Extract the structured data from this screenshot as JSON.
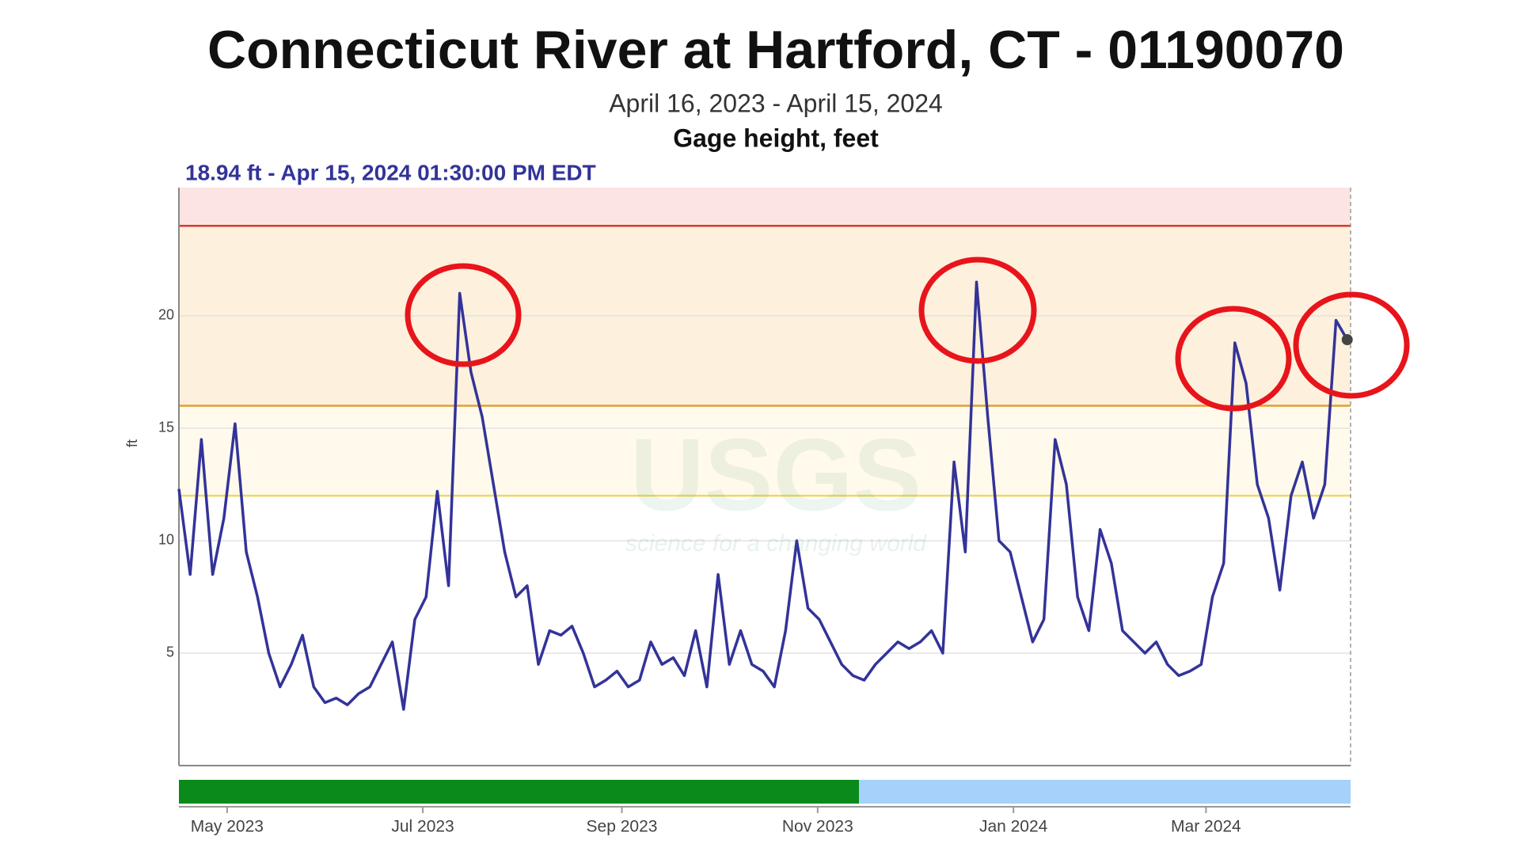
{
  "chart_data": {
    "type": "line",
    "title": "Connecticut River at Hartford, CT - 01190070",
    "subtitle": "April 16, 2023 - April 15, 2024",
    "parameter": "Gage height, feet",
    "annotation": "18.94 ft - Apr 15, 2024 01:30:00 PM EDT",
    "y_label": "ft",
    "watermark": "USGS",
    "watermark_tagline": "science for a changing world",
    "color": "#333399",
    "values": [
      12.3,
      8.5,
      14.5,
      8.5,
      11,
      15.2,
      9.5,
      7.5,
      5,
      3.5,
      4.5,
      5.8,
      3.5,
      2.8,
      3.0,
      2.7,
      3.2,
      3.5,
      4.5,
      5.5,
      2.5,
      6.5,
      7.5,
      12.2,
      8.0,
      21.0,
      17.5,
      15.5,
      12.5,
      9.5,
      7.5,
      8.0,
      4.5,
      6.0,
      5.8,
      6.2,
      5.0,
      3.5,
      3.8,
      4.2,
      3.5,
      3.8,
      5.5,
      4.5,
      4.8,
      4.0,
      6.0,
      3.5,
      8.5,
      4.5,
      6.0,
      4.5,
      4.2,
      3.5,
      6.0,
      10.0,
      7.0,
      6.5,
      5.5,
      4.5,
      4.0,
      3.8,
      4.5,
      5.0,
      5.5,
      5.2,
      5.5,
      6.0,
      5.0,
      13.5,
      9.5,
      21.5,
      15.5,
      10.0,
      9.5,
      7.5,
      5.5,
      6.5,
      14.5,
      12.5,
      7.5,
      6.0,
      10.5,
      9.0,
      6.0,
      5.5,
      5.0,
      5.5,
      4.5,
      4.0,
      4.2,
      4.5,
      7.5,
      9.0,
      18.8,
      17.0,
      12.5,
      11.0,
      7.8,
      12.0,
      13.5,
      11.0,
      12.5,
      19.8,
      18.94
    ],
    "xlim": [
      0,
      104.3
    ],
    "xticks": [
      {
        "value": 4.29,
        "label": "May 2023"
      },
      {
        "value": 21.71,
        "label": "Jul 2023"
      },
      {
        "value": 39.43,
        "label": "Sep 2023"
      },
      {
        "value": 56.86,
        "label": "Nov 2023"
      },
      {
        "value": 74.29,
        "label": "Jan 2024"
      },
      {
        "value": 91.43,
        "label": "Mar 2024"
      }
    ],
    "ylim": [
      0,
      25.7
    ],
    "yticks": [
      5,
      10,
      15,
      20
    ],
    "grid": true,
    "thresholds": [
      {
        "value": 12,
        "color": "#f0d860",
        "fill": "#fffaec"
      },
      {
        "value": 16,
        "color": "#e0a030",
        "fill": "#fdf0dd"
      },
      {
        "value": 24,
        "color": "#d9382b",
        "fill": "#fde4e4"
      }
    ]
  }
}
